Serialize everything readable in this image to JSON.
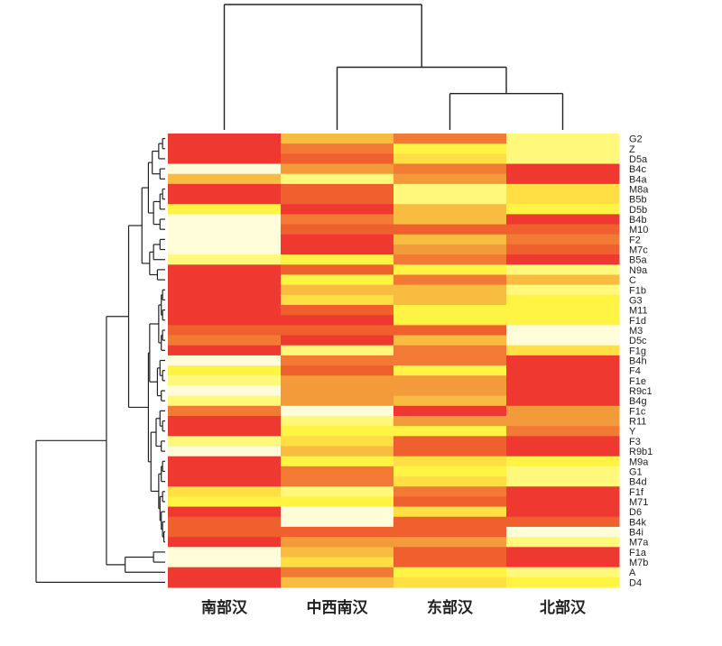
{
  "chart_data": {
    "type": "heatmap",
    "title": "",
    "columns": [
      "南部汉",
      "中西南汉",
      "东部汉",
      "北部汉"
    ],
    "rows": [
      "G2",
      "Z",
      "D5a",
      "B4c",
      "B4a",
      "M8a",
      "B5b",
      "D5b",
      "B4b",
      "M10",
      "F2",
      "M7c",
      "B5a",
      "N9a",
      "C",
      "F1b",
      "G3",
      "M11",
      "F1d",
      "M3",
      "D5c",
      "F1g",
      "B4h",
      "F4",
      "F1e",
      "R9c1",
      "B4g",
      "F1c",
      "R11",
      "Y",
      "F3",
      "R9b1",
      "M9a",
      "G1",
      "B4d",
      "F1f",
      "M71",
      "D6",
      "B4k",
      "B4i",
      "M7a",
      "F1a",
      "M7b",
      "A",
      "D4"
    ],
    "value_scale": "ordinal color level 1 (low, cream) to 9 (high, red)",
    "palette": [
      "#FFFDD9",
      "#FFF87A",
      "#FFF344",
      "#FFDF44",
      "#F7BC40",
      "#F39A3B",
      "#F27A35",
      "#F0602F",
      "#EE3830"
    ],
    "values": [
      [
        9,
        5,
        7,
        2
      ],
      [
        9,
        7,
        3,
        2
      ],
      [
        9,
        8,
        4,
        2
      ],
      [
        1,
        6,
        7,
        9
      ],
      [
        5,
        2,
        6,
        9
      ],
      [
        9,
        8,
        2,
        4
      ],
      [
        9,
        8,
        2,
        4
      ],
      [
        3,
        9,
        5,
        3
      ],
      [
        1,
        7,
        5,
        9
      ],
      [
        1,
        8,
        8,
        8
      ],
      [
        1,
        9,
        5,
        7
      ],
      [
        1,
        9,
        6,
        8
      ],
      [
        2,
        3,
        7,
        9
      ],
      [
        9,
        8,
        3,
        2
      ],
      [
        9,
        3,
        7,
        5
      ],
      [
        9,
        5,
        5,
        2
      ],
      [
        9,
        4,
        5,
        3
      ],
      [
        9,
        8,
        3,
        3
      ],
      [
        9,
        9,
        3,
        3
      ],
      [
        8,
        8,
        8,
        1
      ],
      [
        7,
        9,
        5,
        1
      ],
      [
        9,
        2,
        7,
        4
      ],
      [
        1,
        7,
        7,
        9
      ],
      [
        3,
        8,
        3,
        9
      ],
      [
        2,
        6,
        6,
        9
      ],
      [
        1,
        6,
        6,
        9
      ],
      [
        2,
        6,
        5,
        9
      ],
      [
        7,
        1,
        9,
        6
      ],
      [
        9,
        2,
        6,
        6
      ],
      [
        9,
        3,
        3,
        7
      ],
      [
        2,
        4,
        8,
        9
      ],
      [
        1,
        5,
        8,
        9
      ],
      [
        9,
        3,
        4,
        3
      ],
      [
        9,
        7,
        3,
        2
      ],
      [
        9,
        7,
        4,
        2
      ],
      [
        4,
        2,
        7,
        9
      ],
      [
        3,
        3,
        8,
        9
      ],
      [
        9,
        1,
        4,
        9
      ],
      [
        8,
        1,
        8,
        8
      ],
      [
        8,
        8,
        8,
        1
      ],
      [
        9,
        6,
        6,
        2
      ],
      [
        1,
        5,
        8,
        9
      ],
      [
        1,
        4,
        8,
        9
      ],
      [
        9,
        7,
        3,
        2
      ],
      [
        9,
        5,
        4,
        3
      ]
    ],
    "column_dendrogram": {
      "h": 1,
      "c": [
        0,
        {
          "h": 0.5,
          "c": [
            1,
            {
              "h": 0.29,
              "c": [
                2,
                3
              ]
            }
          ]
        }
      ]
    },
    "row_dendrogram": {
      "h": 1,
      "c": [
        {
          "h": 0.455,
          "c": [
            {
              "h": 0.283,
              "c": [
                {
                  "h": 0.18,
                  "c": [
                    {
                      "h": 0.13,
                      "c": [
                        {
                          "h": 0.1,
                          "c": [
                            {
                              "h": 0.05,
                              "c": [
                                {
                                  "h": 0.02,
                                  "c": [
                                    0,
                                    1
                                  ]
                                },
                                2
                              ]
                            },
                            {
                              "h": 0.04,
                              "c": [
                                3,
                                4
                              ]
                            }
                          ]
                        },
                        {
                          "h": 0.09,
                          "c": [
                            {
                              "h": 0.04,
                              "c": [
                                {
                                  "h": 0.02,
                                  "c": [
                                    5,
                                    6
                                  ]
                                },
                                7
                              ]
                            },
                            {
                              "h": 0.04,
                              "c": [
                                8,
                                9
                              ]
                            }
                          ]
                        }
                      ]
                    },
                    {
                      "h": 0.12,
                      "c": [
                        {
                          "h": 0.09,
                          "c": [
                            {
                              "h": 0.04,
                              "c": [
                                10,
                                11
                              ]
                            },
                            12
                          ]
                        },
                        {
                          "h": 0.06,
                          "c": [
                            13,
                            14
                          ]
                        }
                      ]
                    }
                  ]
                },
                {
                  "h": 0.13,
                  "c": [
                    {
                      "h": 0.12,
                      "c": [
                        {
                          "h": 0.05,
                          "c": [
                            {
                              "h": 0.03,
                              "c": [
                                {
                                  "h": 0.02,
                                  "c": [
                                    15,
                                    16
                                  ]
                                },
                                {
                                  "h": 0.02,
                                  "c": [
                                    17,
                                    18
                                  ]
                                }
                              ]
                            },
                            {
                              "h": 0.03,
                              "c": [
                                {
                                  "h": 0.02,
                                  "c": [
                                    19,
                                    20
                                  ]
                                },
                                21
                              ]
                            }
                          ]
                        },
                        {
                          "h": 0.06,
                          "c": [
                            {
                              "h": 0.04,
                              "c": [
                                22,
                                {
                                  "h": 0.02,
                                  "c": [
                                    23,
                                    24
                                  ]
                                }
                              ]
                            },
                            {
                              "h": 0.03,
                              "c": [
                                25,
                                26
                              ]
                            }
                          ]
                        }
                      ]
                    },
                    {
                      "h": 0.11,
                      "c": [
                        {
                          "h": 0.07,
                          "c": [
                            {
                              "h": 0.04,
                              "c": [
                                27,
                                {
                                  "h": 0.02,
                                  "c": [
                                    28,
                                    29
                                  ]
                                }
                              ]
                            },
                            {
                              "h": 0.03,
                              "c": [
                                30,
                                31
                              ]
                            }
                          ]
                        },
                        {
                          "h": 0.05,
                          "c": [
                            {
                              "h": 0.03,
                              "c": [
                                {
                                  "h": 0.02,
                                  "c": [
                                    32,
                                    33
                                  ]
                                },
                                34
                              ]
                            },
                            {
                              "h": 0.04,
                              "c": [
                                {
                                  "h": 0.02,
                                  "c": [
                                    35,
                                    36
                                  ]
                                },
                                {
                                  "h": 0.03,
                                  "c": [
                                    37,
                                    {
                                      "h": 0.02,
                                      "c": [
                                        38,
                                        {
                                          "h": 0.01,
                                          "c": [
                                            39,
                                            40
                                          ]
                                        }
                                      ]
                                    }
                                  ]
                                }
                              ]
                            }
                          ]
                        }
                      ]
                    }
                  ]
                }
              ]
            },
            {
              "h": 0.31,
              "c": [
                {
                  "h": 0.09,
                  "c": [
                    41,
                    42
                  ]
                },
                43
              ]
            }
          ]
        },
        44
      ]
    }
  }
}
